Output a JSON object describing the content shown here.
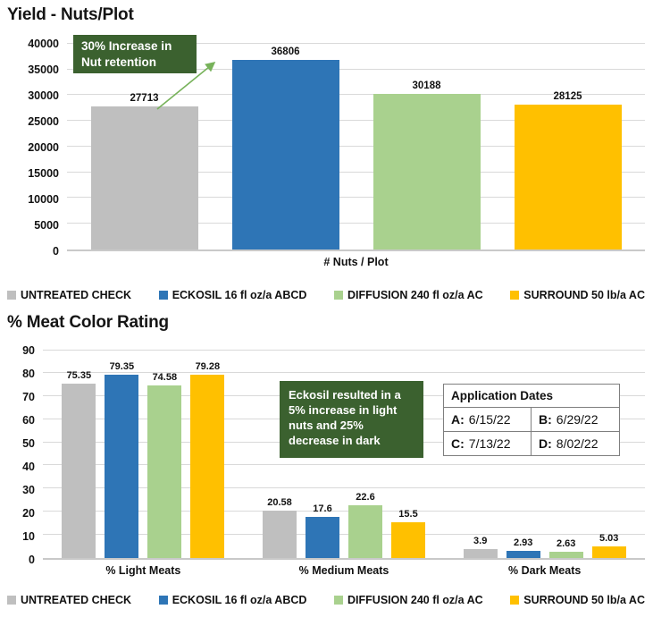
{
  "chart_data": [
    {
      "type": "bar",
      "title": "Yield - Nuts/Plot",
      "categories": [
        "# Nuts / Plot"
      ],
      "series": [
        {
          "name": "UNTREATED CHECK",
          "color": "#BFBFBF",
          "values": [
            27713
          ]
        },
        {
          "name": "ECKOSIL 16 fl oz/a ABCD",
          "color": "#2E75B6",
          "values": [
            36806
          ]
        },
        {
          "name": "DIFFUSION 240 fl oz/a AC",
          "color": "#A9D18E",
          "values": [
            30188
          ]
        },
        {
          "name": "SURROUND 50 lb/a AC",
          "color": "#FFC000",
          "values": [
            28125
          ]
        }
      ],
      "ylim": [
        0,
        40000
      ],
      "ytick_step": 5000,
      "grid": true,
      "legend_position": "bottom",
      "annotation": {
        "text": "30% Increase in Nut retention",
        "bg": "#3B612F",
        "fg": "#FFFFFF",
        "arrow_color": "#77B25A"
      }
    },
    {
      "type": "bar",
      "title": "% Meat Color Rating",
      "categories": [
        "% Light Meats",
        "% Medium Meats",
        "% Dark Meats"
      ],
      "series": [
        {
          "name": "UNTREATED CHECK",
          "color": "#BFBFBF",
          "values": [
            75.35,
            20.58,
            3.9
          ]
        },
        {
          "name": "ECKOSIL 16 fl oz/a ABCD",
          "color": "#2E75B6",
          "values": [
            79.35,
            17.6,
            2.93
          ]
        },
        {
          "name": "DIFFUSION 240 fl oz/a AC",
          "color": "#A9D18E",
          "values": [
            74.58,
            22.6,
            2.63
          ]
        },
        {
          "name": "SURROUND 50 lb/a AC",
          "color": "#FFC000",
          "values": [
            79.28,
            15.5,
            5.03
          ]
        }
      ],
      "ylim": [
        0,
        90
      ],
      "ytick_step": 10,
      "grid": true,
      "legend_position": "bottom",
      "annotation": {
        "text": "Eckosil resulted in a 5% increase in light nuts and 25% decrease in dark",
        "bg": "#3B612F",
        "fg": "#FFFFFF"
      },
      "table": {
        "title": "Application Dates",
        "cells": [
          {
            "key": "A:",
            "value": "6/15/22"
          },
          {
            "key": "B:",
            "value": "6/29/22"
          },
          {
            "key": "C:",
            "value": "7/13/22"
          },
          {
            "key": "D:",
            "value": "8/02/22"
          }
        ]
      }
    }
  ]
}
